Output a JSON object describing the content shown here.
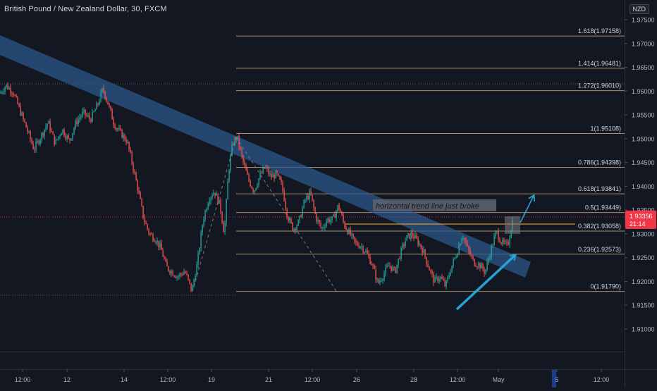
{
  "chart_data": {
    "type": "line",
    "title": "British Pound / New Zealand Dollar, 30, FXCM",
    "currency": "NZD",
    "x_ticks": [
      "12:00",
      "12",
      "14",
      "12:00",
      "19",
      "21",
      "12:00",
      "26",
      "28",
      "12:00",
      "May",
      "5",
      "12:00"
    ],
    "y_ticks": [
      "1.97500",
      "1.97000",
      "1.96500",
      "1.96000",
      "1.95500",
      "1.95000",
      "1.94500",
      "1.94000",
      "1.93500",
      "1.93000",
      "1.92500",
      "1.92000",
      "1.91500",
      "1.91000"
    ],
    "ylim": [
      1.9045,
      1.9786
    ],
    "last_price": "1.93356",
    "countdown": "21:14",
    "price_series": [
      {
        "name": "price",
        "points": [
          [
            0,
            1.9595
          ],
          [
            8,
            1.9612
          ],
          [
            18,
            1.96
          ],
          [
            28,
            1.956
          ],
          [
            38,
            1.952
          ],
          [
            48,
            1.9478
          ],
          [
            58,
            1.9505
          ],
          [
            68,
            1.9535
          ],
          [
            78,
            1.949
          ],
          [
            88,
            1.952
          ],
          [
            98,
            1.9495
          ],
          [
            108,
            1.9535
          ],
          [
            118,
            1.9555
          ],
          [
            128,
            1.954
          ],
          [
            138,
            1.957
          ],
          [
            146,
            1.9605
          ],
          [
            154,
            1.957
          ],
          [
            162,
            1.953
          ],
          [
            172,
            1.951
          ],
          [
            180,
            1.9495
          ],
          [
            188,
            1.9445
          ],
          [
            196,
            1.939
          ],
          [
            204,
            1.933
          ],
          [
            212,
            1.93
          ],
          [
            220,
            1.929
          ],
          [
            228,
            1.927
          ],
          [
            236,
            1.923
          ],
          [
            244,
            1.922
          ],
          [
            252,
            1.921
          ],
          [
            262,
            1.9222
          ],
          [
            272,
            1.918
          ],
          [
            280,
            1.924
          ],
          [
            288,
            1.933
          ],
          [
            296,
            1.9375
          ],
          [
            304,
            1.939
          ],
          [
            312,
            1.936
          ],
          [
            318,
            1.93
          ],
          [
            324,
            1.943
          ],
          [
            330,
            1.949
          ],
          [
            336,
            1.9505
          ],
          [
            344,
            1.9455
          ],
          [
            352,
            1.9415
          ],
          [
            360,
            1.939
          ],
          [
            368,
            1.942
          ],
          [
            376,
            1.944
          ],
          [
            384,
            1.942
          ],
          [
            392,
            1.9425
          ],
          [
            400,
            1.94
          ],
          [
            408,
            1.9335
          ],
          [
            416,
            1.931
          ],
          [
            424,
            1.9325
          ],
          [
            432,
            1.937
          ],
          [
            440,
            1.9385
          ],
          [
            448,
            1.9335
          ],
          [
            456,
            1.931
          ],
          [
            464,
            1.933
          ],
          [
            472,
            1.933
          ],
          [
            480,
            1.936
          ],
          [
            488,
            1.932
          ],
          [
            496,
            1.93
          ],
          [
            504,
            1.928
          ],
          [
            512,
            1.9275
          ],
          [
            520,
            1.926
          ],
          [
            528,
            1.9235
          ],
          [
            536,
            1.9195
          ],
          [
            544,
            1.9215
          ],
          [
            552,
            1.9235
          ],
          [
            560,
            1.922
          ],
          [
            568,
            1.926
          ],
          [
            576,
            1.929
          ],
          [
            584,
            1.93
          ],
          [
            592,
            1.9285
          ],
          [
            600,
            1.9265
          ],
          [
            608,
            1.923
          ],
          [
            616,
            1.92
          ],
          [
            624,
            1.921
          ],
          [
            632,
            1.919
          ],
          [
            640,
            1.923
          ],
          [
            648,
            1.926
          ],
          [
            656,
            1.93
          ],
          [
            664,
            1.9265
          ],
          [
            672,
            1.924
          ],
          [
            680,
            1.9235
          ],
          [
            688,
            1.922
          ],
          [
            696,
            1.9265
          ],
          [
            704,
            1.9305
          ],
          [
            712,
            1.928
          ],
          [
            720,
            1.9275
          ],
          [
            728,
            1.9335
          ]
        ]
      }
    ],
    "fibonacci_levels": [
      {
        "label": "1.618(1.97158)",
        "price": 1.97158
      },
      {
        "label": "1.414(1.96481)",
        "price": 1.96481
      },
      {
        "label": "1.272(1.96010)",
        "price": 1.9601
      },
      {
        "label": "1(1.95108)",
        "price": 1.95108
      },
      {
        "label": "0.786(1.94398)",
        "price": 1.94398
      },
      {
        "label": "0.618(1.93841)",
        "price": 1.93841
      },
      {
        "label": "0.5(1.93449)",
        "price": 1.93449
      },
      {
        "label": "0.382(1.93058)",
        "price": 1.93058
      },
      {
        "label": "0.236(1.92573)",
        "price": 1.92573
      },
      {
        "label": "0(1.91790)",
        "price": 1.9179
      }
    ],
    "annotations": [
      {
        "text": "horizontal trend line just broke"
      }
    ],
    "colors": {
      "background": "#131722",
      "bull": "#26a69a",
      "bear": "#ef5350",
      "fib": "#c8a27a",
      "trend_channel": "#2c5a8e",
      "arrow": "#27a2d6",
      "orange_level": "#f5a623",
      "price_label": "#f23645"
    }
  }
}
